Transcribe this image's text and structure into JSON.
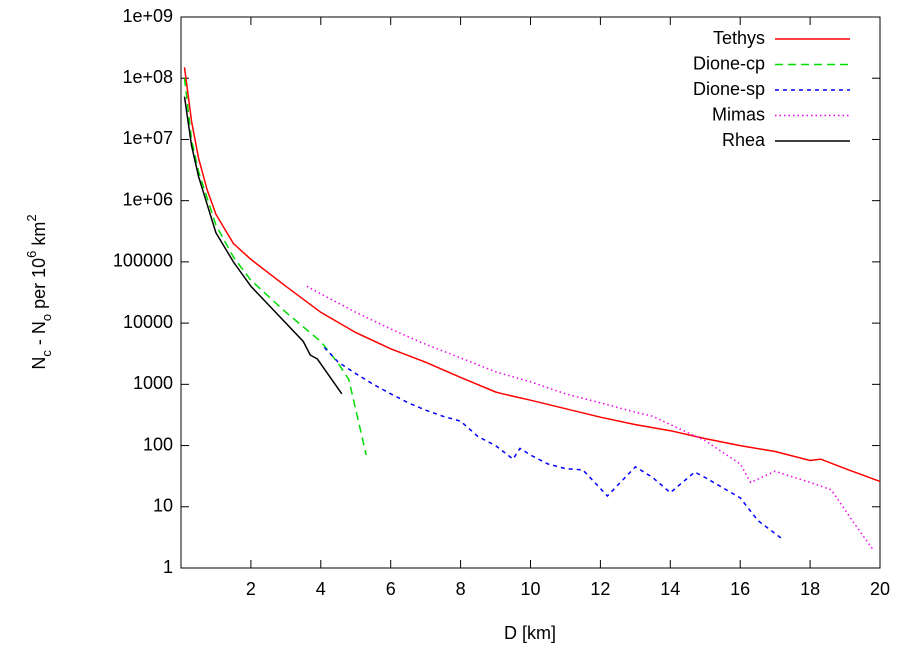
{
  "chart_data": {
    "type": "line",
    "xlabel": "D [km]",
    "ylabel": [
      "N",
      "c",
      " - N",
      "o",
      " per 10",
      "6",
      " km",
      "2"
    ],
    "xlim": [
      0,
      20
    ],
    "xticks": [
      2,
      4,
      6,
      8,
      10,
      12,
      14,
      16,
      18,
      20
    ],
    "ylim": [
      1,
      1000000000
    ],
    "ylog": true,
    "yticks": [
      1,
      10,
      100,
      1000,
      10000,
      100000,
      {
        "value": 1000000,
        "label": "1e+06"
      },
      {
        "value": 10000000,
        "label": "1e+07"
      },
      {
        "value": 100000000,
        "label": "1e+08"
      },
      {
        "value": 1000000000,
        "label": "1e+09"
      }
    ],
    "legend": "top-right",
    "series": [
      {
        "name": "Tethys",
        "color": "#ff0000",
        "dash": "solid",
        "x": [
          0.1,
          0.3,
          0.5,
          0.75,
          1,
          1.5,
          2,
          3,
          4,
          5,
          6,
          7,
          8,
          9,
          9.2,
          10,
          11,
          12,
          13,
          14,
          15,
          16,
          17,
          18,
          18.3,
          19,
          20
        ],
        "values": [
          150000000,
          20000000,
          5000000,
          1500000,
          600000,
          200000,
          110000,
          40000,
          15000,
          7000,
          3800,
          2300,
          1300,
          750,
          700,
          550,
          400,
          290,
          220,
          175,
          130,
          100,
          80,
          57,
          60,
          42,
          26
        ]
      },
      {
        "name": "Dione-cp",
        "color": "#00dd00",
        "dash": "dashed",
        "x": [
          0.1,
          0.3,
          0.5,
          1,
          1.5,
          2,
          3,
          4,
          4.5,
          4.8,
          5.3
        ],
        "values": [
          100000000,
          10000000,
          3000000,
          400000,
          120000,
          50000,
          15000,
          5000,
          2200,
          1200,
          70
        ]
      },
      {
        "name": "Dione-sp",
        "color": "#0000ff",
        "dash": "short-dashed",
        "x": [
          4.1,
          4.5,
          5,
          5.5,
          6,
          6.5,
          7,
          7.5,
          8,
          8.5,
          9,
          9.5,
          9.7,
          10,
          10.5,
          11,
          11.5,
          12.2,
          13,
          13.5,
          14,
          14.7,
          15,
          16,
          16.5,
          17.2
        ],
        "values": [
          4000,
          2300,
          1500,
          1000,
          700,
          500,
          380,
          300,
          250,
          140,
          100,
          60,
          90,
          70,
          50,
          42,
          40,
          15,
          45,
          30,
          17,
          37,
          30,
          14,
          6,
          3
        ]
      },
      {
        "name": "Mimas",
        "color": "#ee00ee",
        "dash": "dotted",
        "x": [
          3.6,
          4,
          5,
          6,
          7,
          8,
          9,
          10,
          11,
          12,
          13,
          13.5,
          14,
          15,
          16,
          16.3,
          17,
          18,
          18.6,
          19.3,
          19.8
        ],
        "values": [
          40000,
          30000,
          15000,
          8000,
          4500,
          2700,
          1600,
          1100,
          700,
          500,
          350,
          300,
          220,
          120,
          50,
          25,
          38,
          25,
          19,
          5,
          2
        ]
      },
      {
        "name": "Rhea",
        "color": "#000000",
        "dash": "solid",
        "x": [
          0.1,
          0.3,
          0.5,
          1,
          1.5,
          2,
          3,
          3.5,
          3.7,
          3.9,
          4.6
        ],
        "values": [
          50000000,
          8000000,
          2500000,
          300000,
          100000,
          40000,
          10000,
          5000,
          3000,
          2600,
          700
        ]
      }
    ]
  }
}
